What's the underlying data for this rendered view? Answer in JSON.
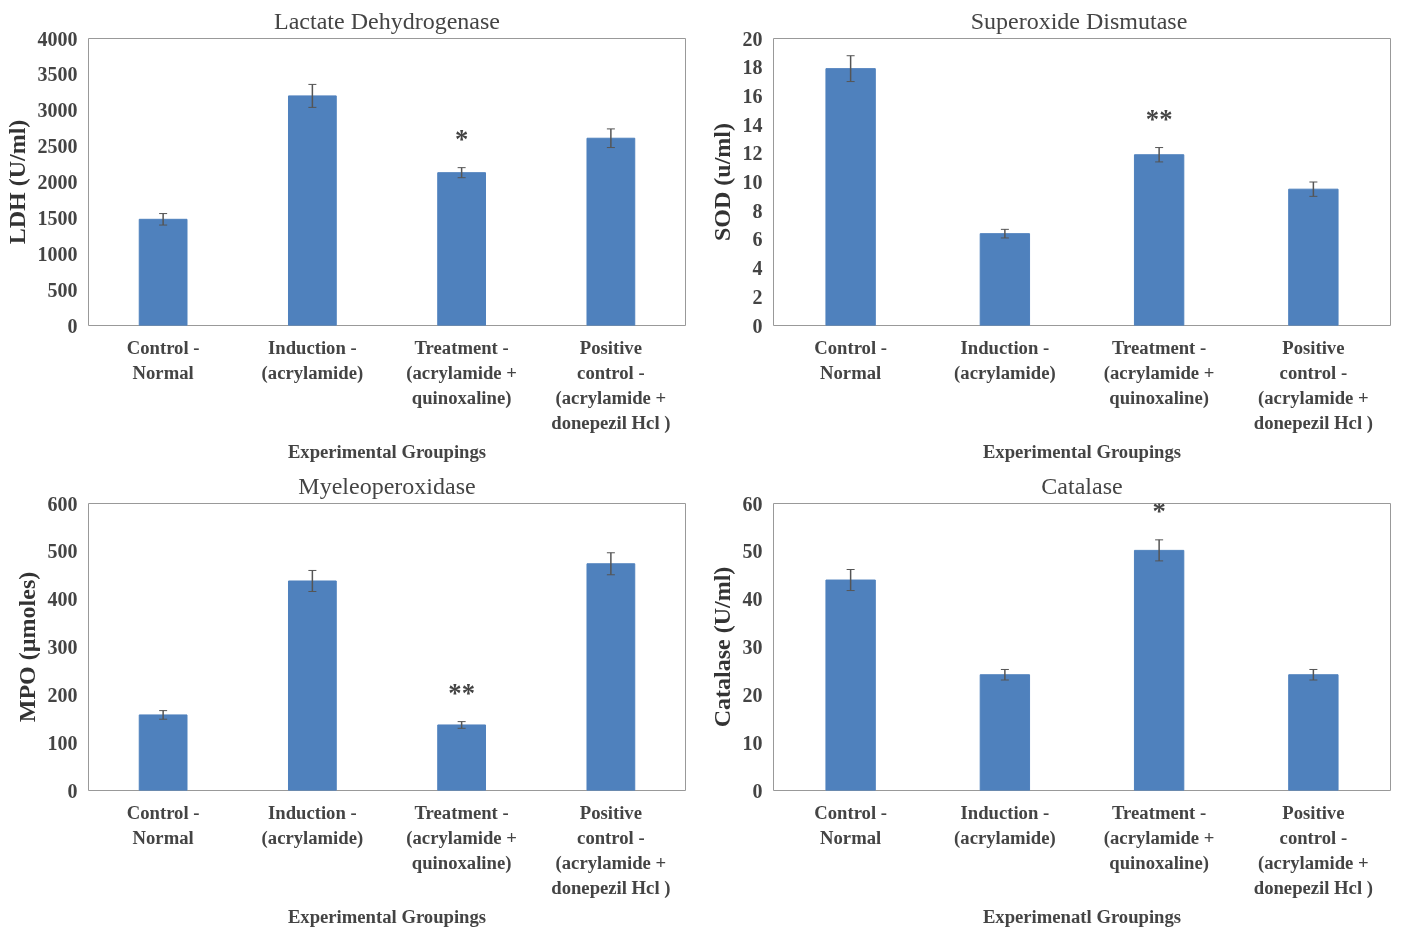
{
  "chart_data": [
    {
      "type": "bar",
      "title": "Lactate Dehydrogenase",
      "xlabel": "Experimental Groupings",
      "ylabel": "LDH (U/ml)",
      "categories": [
        "Control -\nNormal",
        "Induction -\n(acrylamide)",
        "Treatment -\n(acrylamide +\nquinoxaline)",
        "Positive\ncontrol -\n(acrylamide +\ndonepezil Hcl )"
      ],
      "values": [
        1480,
        3200,
        2130,
        2610
      ],
      "errors": [
        80,
        160,
        70,
        130
      ],
      "color": "#4f81bd",
      "ylim": [
        0,
        4000
      ],
      "yticks": [
        0,
        500,
        1000,
        1500,
        2000,
        2500,
        3000,
        3500,
        4000
      ],
      "grid": false,
      "annotations": [
        {
          "text": "*",
          "x": "Treatment -\n(acrylamide +\nquinoxaline)",
          "y": 2130
        }
      ]
    },
    {
      "type": "bar",
      "title": "Superoxide  Dismutase",
      "xlabel": "Experimental Groupings",
      "ylabel": "SOD (u/ml)",
      "categories": [
        "Control -\nNormal",
        "Induction -\n(acrylamide)",
        "Treatment -\n(acrylamide +\nquinoxaline)",
        "Positive\ncontrol -\n(acrylamide +\ndonepezil Hcl )"
      ],
      "values": [
        17.9,
        6.4,
        11.9,
        9.5
      ],
      "errors": [
        0.9,
        0.3,
        0.5,
        0.5
      ],
      "color": "#4f81bd",
      "ylim": [
        0,
        20
      ],
      "yticks": [
        0,
        2,
        4,
        6,
        8,
        10,
        12,
        14,
        16,
        18,
        20
      ],
      "grid": false,
      "annotations": [
        {
          "text": "**",
          "x": "Treatment -\n(acrylamide +\nquinoxaline)",
          "y": 11.9
        }
      ]
    },
    {
      "type": "bar",
      "title": "Myeleoperoxidase",
      "xlabel": "Experimental Groupings",
      "ylabel": "MPO (µmoles)",
      "categories": [
        "Control -\nNormal",
        "Induction -\n(acrylamide)",
        "Treatment -\n(acrylamide +\nquinoxaline)",
        "Positive\ncontrol -\n(acrylamide +\ndonepezil Hcl )"
      ],
      "values": [
        158,
        438,
        137,
        474
      ],
      "errors": [
        9,
        22,
        7,
        23
      ],
      "color": "#4f81bd",
      "ylim": [
        0,
        600
      ],
      "yticks": [
        0,
        100,
        200,
        300,
        400,
        500,
        600
      ],
      "grid": false,
      "annotations": [
        {
          "text": "**",
          "x": "Treatment -\n(acrylamide +\nquinoxaline)",
          "y": 137
        }
      ]
    },
    {
      "type": "bar",
      "title": "Catalase",
      "xlabel": "Experimenatl Groupings",
      "ylabel": "Catalase (U/ml)",
      "categories": [
        "Control -\nNormal",
        "Induction -\n(acrylamide)",
        "Treatment -\n(acrylamide +\nquinoxaline)",
        "Positive\ncontrol -\n(acrylamide +\ndonepezil Hcl )"
      ],
      "values": [
        44,
        24.2,
        50.2,
        24.2
      ],
      "errors": [
        2.2,
        1.1,
        2.2,
        1.1
      ],
      "color": "#4f81bd",
      "ylim": [
        0,
        60
      ],
      "yticks": [
        0,
        10,
        20,
        30,
        40,
        50,
        60
      ],
      "grid": false,
      "annotations": [
        {
          "text": "*",
          "x": "Treatment -\n(acrylamide +\nquinoxaline)",
          "y": 50.2
        }
      ]
    }
  ]
}
